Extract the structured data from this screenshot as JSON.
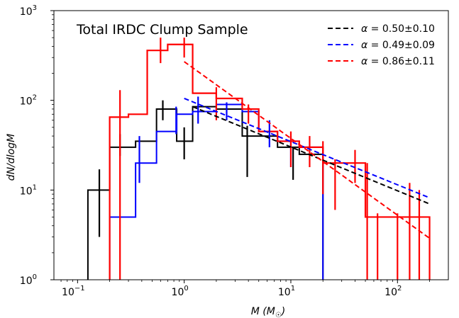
{
  "chart_data": {
    "type": "line",
    "title": "Total IRDC Clump Sample",
    "xlabel": "M (M☉)",
    "ylabel": "dN/dlogM",
    "xscale": "log",
    "yscale": "log",
    "xlim": [
      0.06,
      300
    ],
    "ylim": [
      1,
      1000
    ],
    "x_ticks": [
      {
        "value": 0.1,
        "base": "10",
        "exp": "−1"
      },
      {
        "value": 1,
        "base": "10",
        "exp": "0"
      },
      {
        "value": 10,
        "base": "10",
        "exp": "1"
      },
      {
        "value": 100,
        "base": "10",
        "exp": "2"
      }
    ],
    "y_ticks": [
      {
        "value": 1,
        "base": "10",
        "exp": "0"
      },
      {
        "value": 10,
        "base": "10",
        "exp": "1"
      },
      {
        "value": 100,
        "base": "10",
        "exp": "2"
      },
      {
        "value": 1000,
        "base": "10",
        "exp": "3"
      }
    ],
    "grid": false,
    "legend_position": "top-right",
    "histograms": [
      {
        "color": "#000000",
        "edges": [
          0.125,
          0.2,
          0.35,
          0.55,
          0.85,
          1.2,
          2.0,
          3.5,
          5.0,
          7.5,
          12.0,
          20.0
        ],
        "values": [
          10,
          30,
          35,
          80,
          35,
          85,
          80,
          40,
          40,
          30,
          25
        ],
        "errors": [
          {
            "x": 0.16,
            "lo": 3,
            "hi": 17
          },
          {
            "x": 0.25,
            "lo": 24,
            "hi": 42
          },
          {
            "x": 0.63,
            "lo": 60,
            "hi": 100
          },
          {
            "x": 1.0,
            "lo": 22,
            "hi": 50
          },
          {
            "x": 3.9,
            "lo": 14,
            "hi": 52
          },
          {
            "x": 10.5,
            "lo": 13,
            "hi": 30
          }
        ]
      },
      {
        "color": "#0000ff",
        "edges": [
          0.2,
          0.35,
          0.55,
          0.85,
          1.2,
          2.0,
          3.5,
          5.0,
          7.5,
          12.0,
          20.0
        ],
        "values": [
          5,
          20,
          45,
          70,
          75,
          90,
          75,
          45,
          35,
          30
        ],
        "errors": [
          {
            "x": 0.38,
            "lo": 12,
            "hi": 40
          },
          {
            "x": 0.84,
            "lo": 42,
            "hi": 85
          },
          {
            "x": 1.35,
            "lo": 55,
            "hi": 110
          },
          {
            "x": 2.5,
            "lo": 60,
            "hi": 95
          },
          {
            "x": 6.3,
            "lo": 30,
            "hi": 60
          },
          {
            "x": 10.0,
            "lo": 18,
            "hi": 40
          }
        ]
      },
      {
        "color": "#ff0000",
        "edges": [
          0.2,
          0.3,
          0.45,
          0.7,
          1.2,
          2.0,
          3.5,
          5.0,
          7.5,
          12.0,
          20.0,
          32.0,
          50.0,
          200.0
        ],
        "values": [
          65,
          70,
          360,
          420,
          120,
          105,
          80,
          45,
          35,
          30,
          20,
          20,
          5
        ],
        "errors": [
          {
            "x": 0.25,
            "lo": 1,
            "hi": 130
          },
          {
            "x": 0.6,
            "lo": 260,
            "hi": 500
          },
          {
            "x": 1.0,
            "lo": 300,
            "hi": 500
          },
          {
            "x": 2.0,
            "lo": 60,
            "hi": 140
          },
          {
            "x": 4.0,
            "lo": 55,
            "hi": 90
          },
          {
            "x": 10.0,
            "lo": 18,
            "hi": 45
          },
          {
            "x": 15.0,
            "lo": 18,
            "hi": 40
          },
          {
            "x": 20.0,
            "lo": 9,
            "hi": 35
          },
          {
            "x": 26.0,
            "lo": 6,
            "hi": 22
          },
          {
            "x": 40.0,
            "lo": 12,
            "hi": 28
          },
          {
            "x": 52.0,
            "lo": 1,
            "hi": 20
          },
          {
            "x": 65.0,
            "lo": 1,
            "hi": 5.5
          },
          {
            "x": 100.0,
            "lo": 1,
            "hi": 5.5
          },
          {
            "x": 130.0,
            "lo": 1,
            "hi": 12
          },
          {
            "x": 160.0,
            "lo": 1,
            "hi": 10
          }
        ]
      }
    ],
    "series": [
      {
        "color": "#000000",
        "label_alpha": "α",
        "label_value": " = 0.50±0.10",
        "x": [
          1.2,
          200
        ],
        "y": [
          85,
          7
        ]
      },
      {
        "color": "#0000ff",
        "label_alpha": "α",
        "label_value": " = 0.49±0.09",
        "x": [
          1.0,
          200
        ],
        "y": [
          105,
          8.2
        ]
      },
      {
        "color": "#ff0000",
        "label_alpha": "α",
        "label_value": " = 0.86±0.11",
        "x": [
          1.0,
          200
        ],
        "y": [
          270,
          2.9
        ]
      }
    ]
  }
}
